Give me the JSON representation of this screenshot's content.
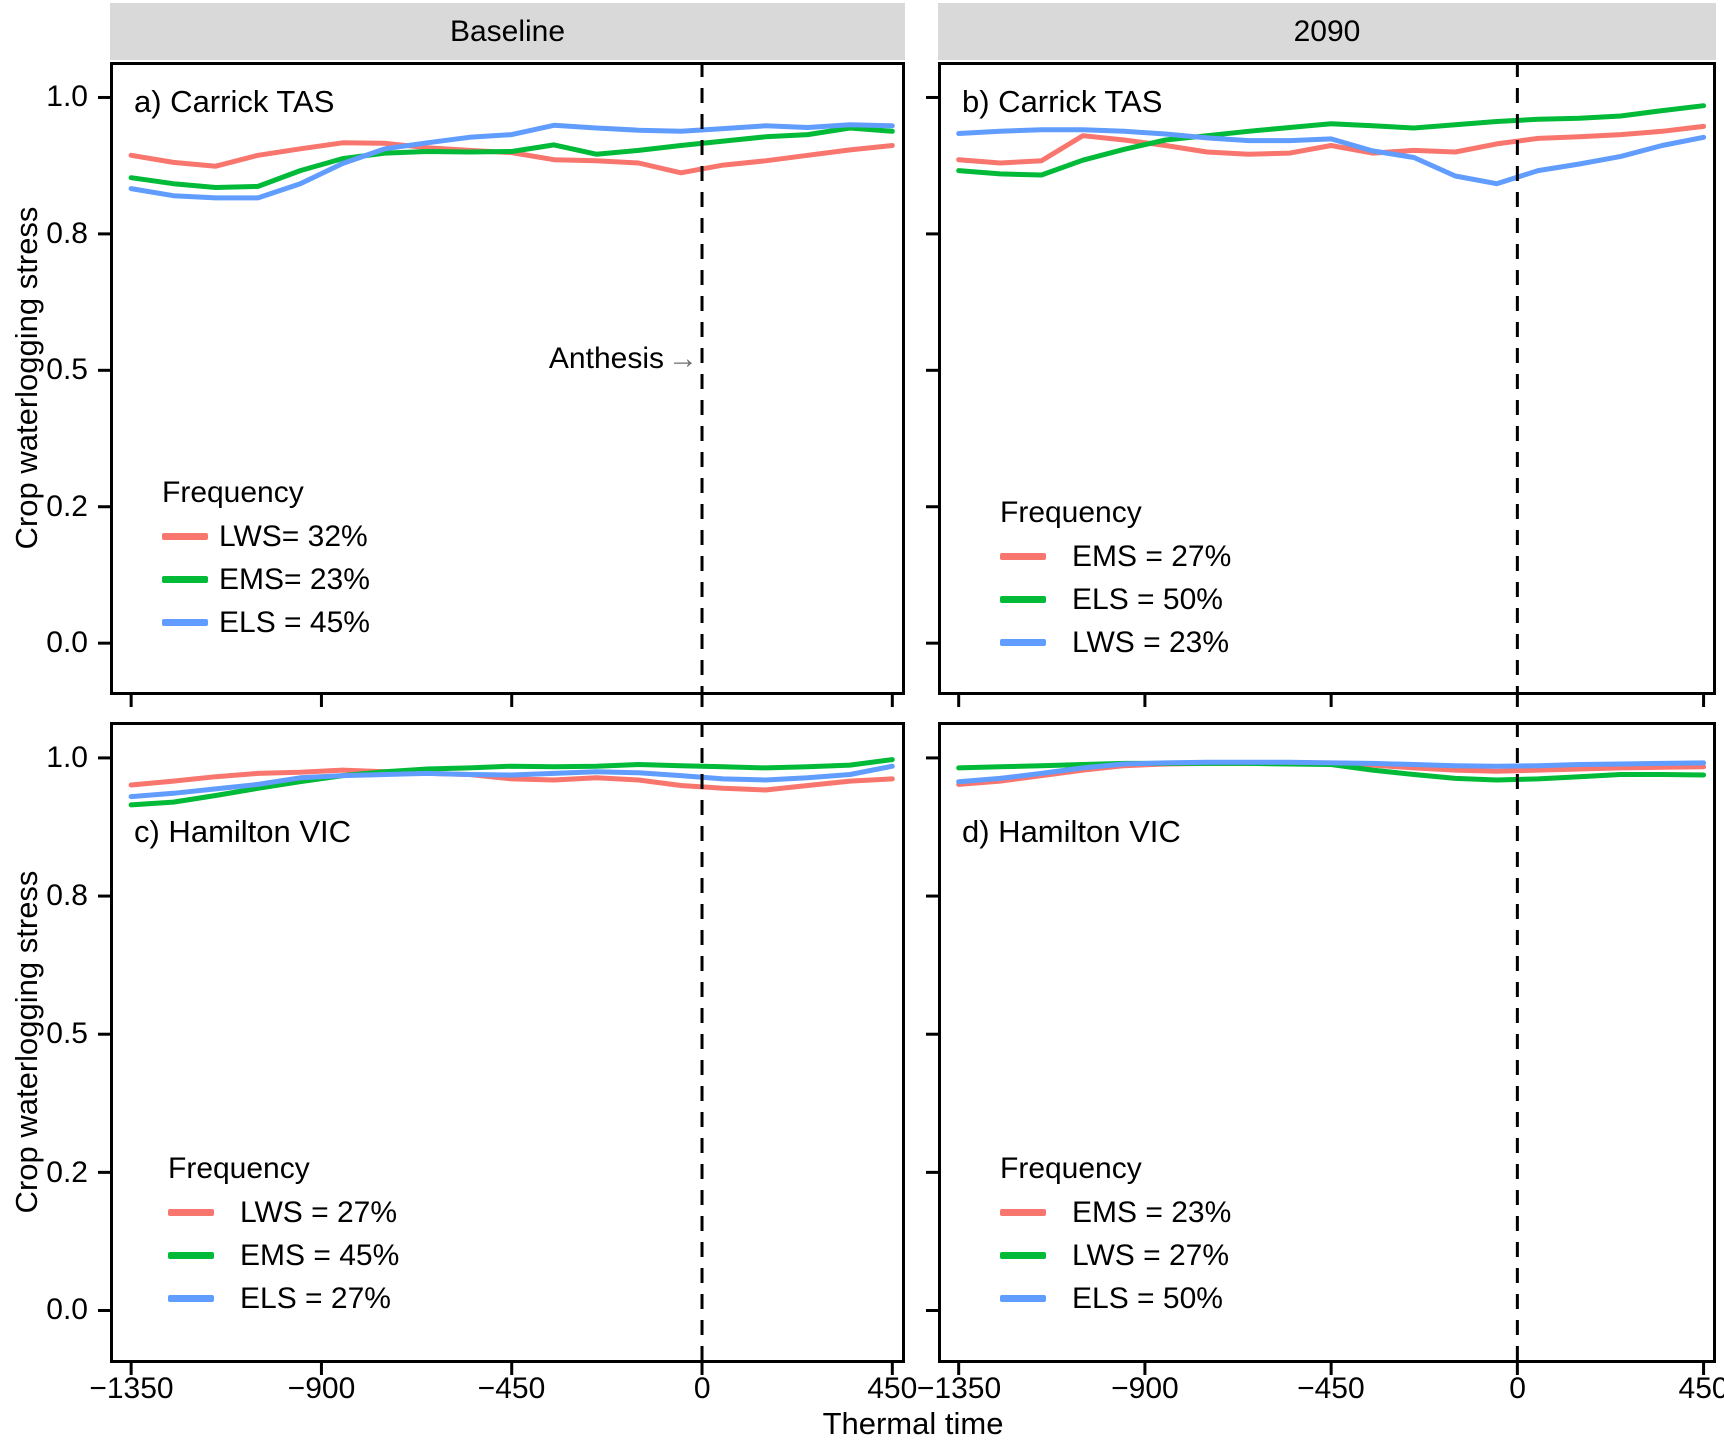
{
  "figure": {
    "background": "#ffffff",
    "strip_background": "#d9d9d9",
    "anthesis_label": "Anthesis",
    "anthesis_arrow": "→",
    "line_colors": {
      "red": "#f8766d",
      "green": "#00ba38",
      "blue": "#619cff"
    }
  },
  "chart_data": {
    "type": "line",
    "title": "",
    "xlabel": "Thermal time",
    "ylabel": "Crop waterlogging stress",
    "strips": [
      {
        "label": "Baseline"
      },
      {
        "label": "2090"
      }
    ],
    "x_domain": [
      -1400,
      480
    ],
    "y_domain": [
      -0.095,
      1.065
    ],
    "anthesis_x": 0,
    "grid": "off",
    "legend_position": "inside-panel lower-left",
    "x": [
      -1350,
      -1250,
      -1150,
      -1050,
      -950,
      -850,
      -750,
      -650,
      -550,
      -450,
      -350,
      -250,
      -150,
      -50,
      50,
      150,
      250,
      350,
      450
    ],
    "x_ticks": [
      {
        "value": -1350,
        "label": "−1350"
      },
      {
        "value": -900,
        "label": "−900"
      },
      {
        "value": -450,
        "label": "−450"
      },
      {
        "value": 0,
        "label": "0"
      },
      {
        "value": 450,
        "label": "450"
      }
    ],
    "y_ticks": [
      {
        "value": 1.0,
        "label": "1.0"
      },
      {
        "value": 0.75,
        "label": "0.8"
      },
      {
        "value": 0.5,
        "label": "0.5"
      },
      {
        "value": 0.25,
        "label": "0.2"
      },
      {
        "value": 0.0,
        "label": "0.0"
      }
    ],
    "panels": [
      {
        "id": "a",
        "facet": "Baseline",
        "label": "a) Carrick TAS",
        "legend": {
          "title": "Frequency",
          "items": [
            {
              "text": "LWS= 32%",
              "color": "#f8766d"
            },
            {
              "text": "EMS= 23%",
              "color": "#00ba38"
            },
            {
              "text": "ELS = 45%",
              "color": "#619cff"
            }
          ]
        },
        "series": [
          {
            "name": "LWS",
            "color": "#f8766d",
            "values": [
              0.894,
              0.881,
              0.874,
              0.894,
              0.906,
              0.917,
              0.916,
              0.908,
              0.903,
              0.899,
              0.886,
              0.884,
              0.88,
              0.862,
              0.876,
              0.884,
              0.894,
              0.904,
              0.912
            ]
          },
          {
            "name": "EMS",
            "color": "#00ba38",
            "values": [
              0.853,
              0.842,
              0.835,
              0.837,
              0.866,
              0.888,
              0.898,
              0.901,
              0.9,
              0.901,
              0.913,
              0.896,
              0.903,
              0.912,
              0.92,
              0.928,
              0.932,
              0.944,
              0.938
            ]
          },
          {
            "name": "ELS",
            "color": "#619cff",
            "values": [
              0.833,
              0.82,
              0.816,
              0.816,
              0.842,
              0.879,
              0.906,
              0.917,
              0.927,
              0.932,
              0.949,
              0.944,
              0.94,
              0.938,
              0.943,
              0.948,
              0.945,
              0.95,
              0.948
            ]
          }
        ]
      },
      {
        "id": "b",
        "facet": "2090",
        "label": "b) Carrick TAS",
        "legend": {
          "title": "Frequency",
          "items": [
            {
              "text": "EMS = 27%",
              "color": "#f8766d"
            },
            {
              "text": "ELS = 50%",
              "color": "#00ba38"
            },
            {
              "text": "LWS = 23%",
              "color": "#619cff"
            }
          ]
        },
        "series": [
          {
            "name": "EMS",
            "color": "#f8766d",
            "values": [
              0.886,
              0.88,
              0.884,
              0.93,
              0.922,
              0.912,
              0.9,
              0.896,
              0.898,
              0.912,
              0.898,
              0.903,
              0.9,
              0.915,
              0.925,
              0.928,
              0.932,
              0.938,
              0.947
            ]
          },
          {
            "name": "ELS",
            "color": "#00ba38",
            "values": [
              0.866,
              0.86,
              0.858,
              0.885,
              0.905,
              0.922,
              0.93,
              0.938,
              0.945,
              0.952,
              0.948,
              0.944,
              0.95,
              0.956,
              0.96,
              0.962,
              0.966,
              0.976,
              0.985
            ]
          },
          {
            "name": "LWS",
            "color": "#619cff",
            "values": [
              0.934,
              0.938,
              0.941,
              0.941,
              0.938,
              0.933,
              0.926,
              0.921,
              0.921,
              0.924,
              0.902,
              0.89,
              0.856,
              0.842,
              0.866,
              0.878,
              0.892,
              0.912,
              0.927
            ]
          }
        ]
      },
      {
        "id": "c",
        "facet": "Baseline",
        "label": "c) Hamilton VIC",
        "legend": {
          "title": "Frequency",
          "items": [
            {
              "text": "LWS = 27%",
              "color": "#f8766d"
            },
            {
              "text": "EMS = 45%",
              "color": "#00ba38"
            },
            {
              "text": "ELS = 27%",
              "color": "#619cff"
            }
          ]
        },
        "series": [
          {
            "name": "LWS",
            "color": "#f8766d",
            "values": [
              0.951,
              0.958,
              0.966,
              0.972,
              0.974,
              0.978,
              0.975,
              0.972,
              0.97,
              0.962,
              0.96,
              0.964,
              0.96,
              0.95,
              0.945,
              0.942,
              0.95,
              0.958,
              0.962
            ]
          },
          {
            "name": "EMS",
            "color": "#00ba38",
            "values": [
              0.915,
              0.92,
              0.932,
              0.945,
              0.957,
              0.968,
              0.975,
              0.98,
              0.982,
              0.985,
              0.984,
              0.985,
              0.988,
              0.986,
              0.984,
              0.982,
              0.984,
              0.987,
              0.997
            ]
          },
          {
            "name": "ELS",
            "color": "#619cff",
            "values": [
              0.93,
              0.936,
              0.944,
              0.952,
              0.964,
              0.968,
              0.97,
              0.972,
              0.97,
              0.969,
              0.972,
              0.975,
              0.973,
              0.968,
              0.962,
              0.96,
              0.964,
              0.97,
              0.985
            ]
          }
        ]
      },
      {
        "id": "d",
        "facet": "2090",
        "label": "d) Hamilton VIC",
        "legend": {
          "title": "Frequency",
          "items": [
            {
              "text": "EMS = 23%",
              "color": "#f8766d"
            },
            {
              "text": "LWS = 27%",
              "color": "#00ba38"
            },
            {
              "text": "ELS = 50%",
              "color": "#619cff"
            }
          ]
        },
        "series": [
          {
            "name": "EMS",
            "color": "#f8766d",
            "values": [
              0.952,
              0.958,
              0.968,
              0.978,
              0.986,
              0.989,
              0.99,
              0.99,
              0.99,
              0.989,
              0.987,
              0.982,
              0.978,
              0.976,
              0.978,
              0.98,
              0.982,
              0.983,
              0.984
            ]
          },
          {
            "name": "LWS",
            "color": "#00ba38",
            "values": [
              0.982,
              0.984,
              0.986,
              0.988,
              0.99,
              0.99,
              0.99,
              0.99,
              0.989,
              0.988,
              0.978,
              0.97,
              0.963,
              0.96,
              0.962,
              0.966,
              0.97,
              0.97,
              0.969
            ]
          },
          {
            "name": "ELS",
            "color": "#619cff",
            "values": [
              0.957,
              0.963,
              0.972,
              0.982,
              0.989,
              0.991,
              0.992,
              0.992,
              0.992,
              0.991,
              0.99,
              0.988,
              0.986,
              0.985,
              0.986,
              0.988,
              0.989,
              0.99,
              0.991
            ]
          }
        ]
      }
    ]
  }
}
